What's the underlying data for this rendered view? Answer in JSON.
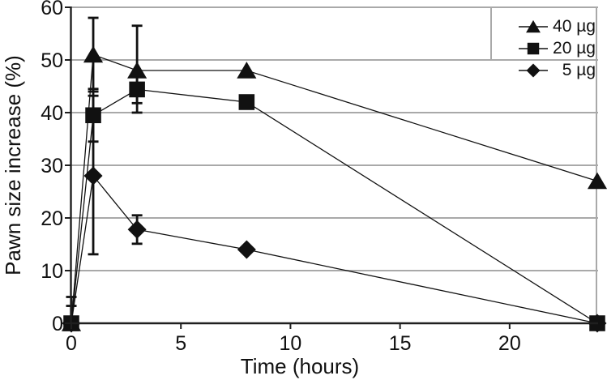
{
  "chart_data": {
    "type": "line",
    "title": "",
    "xlabel": "Time (hours)",
    "ylabel": "Pawn size increase (%)",
    "xlim": [
      0,
      24
    ],
    "ylim": [
      0,
      60
    ],
    "x_ticks": [
      0,
      5,
      10,
      15,
      20
    ],
    "y_ticks": [
      0,
      10,
      20,
      30,
      40,
      50,
      60
    ],
    "grid": "horizontal",
    "legend_position": "top-right-inside",
    "series": [
      {
        "name": "40 µg",
        "marker": "triangle",
        "x": [
          0,
          1,
          3,
          8,
          24
        ],
        "y": [
          0,
          51,
          48,
          48,
          27
        ],
        "err_up": [
          3.3,
          7,
          8.5,
          0,
          0
        ],
        "err_down": [
          0,
          7,
          8,
          0,
          0
        ]
      },
      {
        "name": "20 µg",
        "marker": "square",
        "x": [
          0,
          1,
          3,
          8,
          24
        ],
        "y": [
          0,
          39.5,
          44.4,
          42,
          0
        ],
        "err_up": [
          5,
          5,
          2.6,
          0,
          0
        ],
        "err_down": [
          0,
          5,
          2.6,
          0,
          0
        ]
      },
      {
        "name": "5 µg",
        "marker": "diamond",
        "x": [
          0,
          1,
          3,
          8,
          24
        ],
        "y": [
          0,
          28,
          17.8,
          14,
          0
        ],
        "err_up": [
          1,
          15.2,
          2.7,
          0,
          0
        ],
        "err_down": [
          0,
          14.9,
          2.7,
          0,
          0
        ]
      }
    ]
  },
  "colors": {
    "series": "#111111",
    "grid": "#a9a9a9",
    "axis": "#1f1f1f",
    "background": "#ffffff"
  }
}
